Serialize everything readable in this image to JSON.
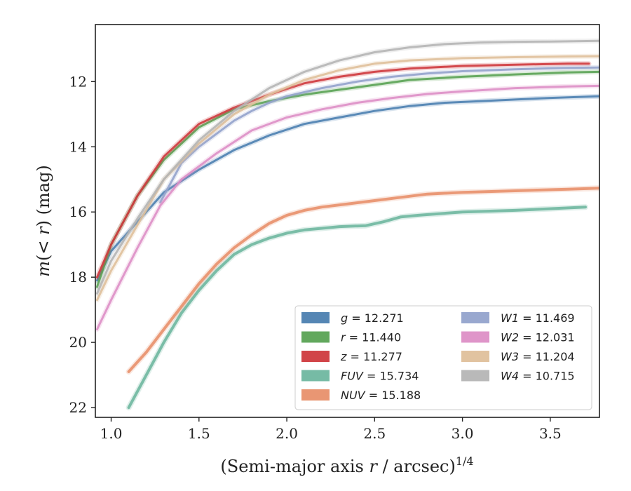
{
  "chart_data": {
    "type": "line",
    "xlabel": "(Semi-major axis r / arcsec)^{1/4}",
    "xlabel_parts": {
      "main": "(Semi-major axis ",
      "var": "r",
      "rest": " / arcsec)",
      "sup": "1/4"
    },
    "ylabel": "m(< r) (mag)",
    "ylabel_parts": {
      "m": "m",
      "open": "(",
      "lt": "<",
      "var": "r",
      "close": ")",
      "unit": " (mag)"
    },
    "xlim": [
      0.91,
      3.78
    ],
    "ylim": [
      22.3,
      10.25
    ],
    "y_inverted": true,
    "xticks": [
      1.0,
      1.5,
      2.0,
      2.5,
      3.0,
      3.5
    ],
    "xtick_labels": [
      "1.0",
      "1.5",
      "2.0",
      "2.5",
      "3.0",
      "3.5"
    ],
    "yticks": [
      12,
      14,
      16,
      18,
      20,
      22
    ],
    "ytick_labels": [
      "12",
      "14",
      "16",
      "18",
      "20",
      "22"
    ],
    "grid": false,
    "legend_position": "lower-right",
    "series": [
      {
        "name": "g = 12.271",
        "label": "g",
        "value": "12.271",
        "color": "#4c7fb0",
        "x": [
          0.92,
          1.0,
          1.15,
          1.3,
          1.5,
          1.7,
          1.9,
          2.1,
          2.3,
          2.5,
          2.7,
          2.9,
          3.1,
          3.3,
          3.5,
          3.78
        ],
        "y": [
          18.1,
          17.2,
          16.3,
          15.4,
          14.7,
          14.1,
          13.65,
          13.3,
          13.1,
          12.9,
          12.75,
          12.65,
          12.6,
          12.55,
          12.5,
          12.45
        ]
      },
      {
        "name": "r = 11.440",
        "label": "r",
        "value": "11.440",
        "color": "#5aa354",
        "x": [
          0.92,
          1.0,
          1.15,
          1.3,
          1.5,
          1.7,
          1.9,
          2.1,
          2.3,
          2.5,
          2.7,
          3.0,
          3.3,
          3.6,
          3.78
        ],
        "y": [
          18.3,
          17.0,
          15.5,
          14.4,
          13.4,
          12.85,
          12.6,
          12.4,
          12.25,
          12.1,
          11.95,
          11.85,
          11.78,
          11.72,
          11.7
        ]
      },
      {
        "name": "z = 11.277",
        "label": "z",
        "value": "11.277",
        "color": "#cf3a3e",
        "x": [
          0.92,
          1.0,
          1.15,
          1.3,
          1.5,
          1.7,
          1.9,
          2.1,
          2.3,
          2.5,
          2.7,
          3.0,
          3.3,
          3.6,
          3.72
        ],
        "y": [
          18.0,
          17.0,
          15.5,
          14.3,
          13.3,
          12.8,
          12.4,
          12.05,
          11.85,
          11.7,
          11.6,
          11.52,
          11.48,
          11.45,
          11.45
        ]
      },
      {
        "name": "FUV = 15.734",
        "label": "FUV",
        "value": "15.734",
        "color": "#6fb7a0",
        "x": [
          1.1,
          1.2,
          1.3,
          1.4,
          1.5,
          1.6,
          1.7,
          1.8,
          1.9,
          2.0,
          2.1,
          2.2,
          2.3,
          2.45,
          2.55,
          2.65,
          2.75,
          3.0,
          3.3,
          3.7
        ],
        "y": [
          22.0,
          21.0,
          20.0,
          19.1,
          18.4,
          17.8,
          17.3,
          17.0,
          16.8,
          16.65,
          16.55,
          16.5,
          16.45,
          16.42,
          16.3,
          16.15,
          16.1,
          16.0,
          15.95,
          15.85
        ]
      },
      {
        "name": "NUV = 15.188",
        "label": "NUV",
        "value": "15.188",
        "color": "#e8906c",
        "x": [
          1.1,
          1.2,
          1.3,
          1.4,
          1.5,
          1.6,
          1.7,
          1.8,
          1.9,
          2.0,
          2.1,
          2.2,
          2.35,
          2.5,
          2.65,
          2.8,
          3.0,
          3.3,
          3.6,
          3.78
        ],
        "y": [
          20.9,
          20.3,
          19.6,
          18.9,
          18.2,
          17.6,
          17.1,
          16.7,
          16.35,
          16.1,
          15.95,
          15.85,
          15.75,
          15.65,
          15.55,
          15.45,
          15.4,
          15.35,
          15.3,
          15.27
        ]
      },
      {
        "name": "W1 = 11.469",
        "label": "W1",
        "value": "11.469",
        "color": "#94a3cc",
        "x": [
          1.28,
          1.4,
          1.5,
          1.6,
          1.7,
          1.8,
          1.9,
          2.0,
          2.2,
          2.4,
          2.6,
          2.8,
          3.0,
          3.3,
          3.6,
          3.78
        ],
        "y": [
          15.7,
          14.5,
          14.0,
          13.6,
          13.2,
          12.9,
          12.65,
          12.45,
          12.2,
          12.0,
          11.85,
          11.75,
          11.68,
          11.62,
          11.58,
          11.57
        ]
      },
      {
        "name": "W2 = 12.031",
        "label": "W2",
        "value": "12.031",
        "color": "#dd8fc6",
        "x": [
          0.92,
          1.0,
          1.15,
          1.28,
          1.4,
          1.6,
          1.8,
          2.0,
          2.2,
          2.4,
          2.6,
          2.8,
          3.0,
          3.3,
          3.6,
          3.78
        ],
        "y": [
          19.6,
          18.7,
          17.1,
          15.8,
          15.0,
          14.2,
          13.5,
          13.1,
          12.85,
          12.65,
          12.5,
          12.38,
          12.3,
          12.2,
          12.15,
          12.13
        ]
      },
      {
        "name": "W3 = 11.204",
        "label": "W3",
        "value": "11.204",
        "color": "#dfc09b",
        "x": [
          0.92,
          1.0,
          1.15,
          1.3,
          1.5,
          1.7,
          1.9,
          2.1,
          2.3,
          2.5,
          2.7,
          3.0,
          3.3,
          3.6,
          3.78
        ],
        "y": [
          18.7,
          17.8,
          16.4,
          15.0,
          13.9,
          13.0,
          12.4,
          11.95,
          11.65,
          11.45,
          11.35,
          11.28,
          11.25,
          11.23,
          11.22
        ]
      },
      {
        "name": "W4 = 10.715",
        "label": "W4",
        "value": "10.715",
        "color": "#b5b5b5",
        "x": [
          0.92,
          1.0,
          1.15,
          1.3,
          1.5,
          1.7,
          1.9,
          2.1,
          2.3,
          2.5,
          2.7,
          2.9,
          3.1,
          3.3,
          3.5,
          3.78
        ],
        "y": [
          18.5,
          17.5,
          16.2,
          15.0,
          13.8,
          12.9,
          12.2,
          11.7,
          11.35,
          11.1,
          10.95,
          10.85,
          10.8,
          10.78,
          10.77,
          10.75
        ]
      }
    ]
  }
}
